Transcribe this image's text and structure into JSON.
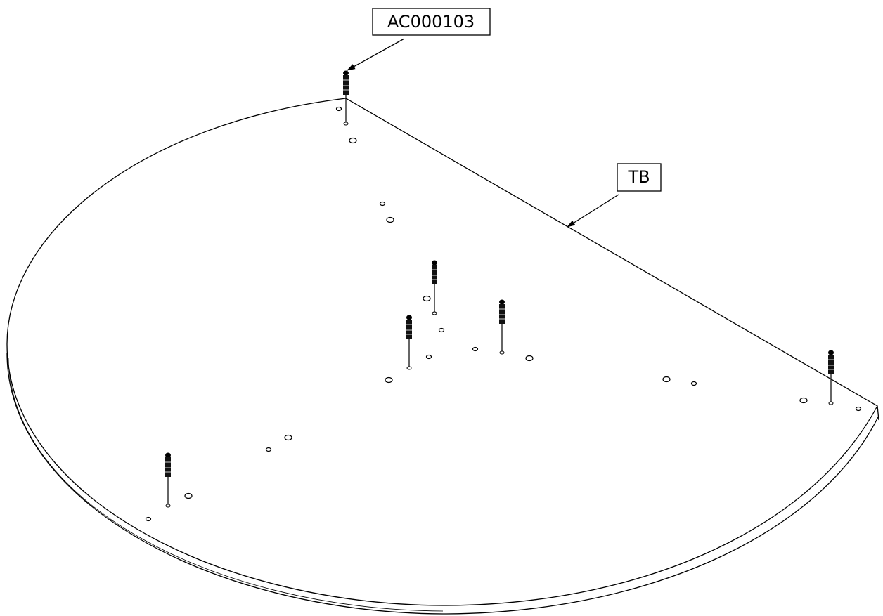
{
  "callouts": [
    {
      "label": "AC000103"
    },
    {
      "label": "TB"
    }
  ]
}
